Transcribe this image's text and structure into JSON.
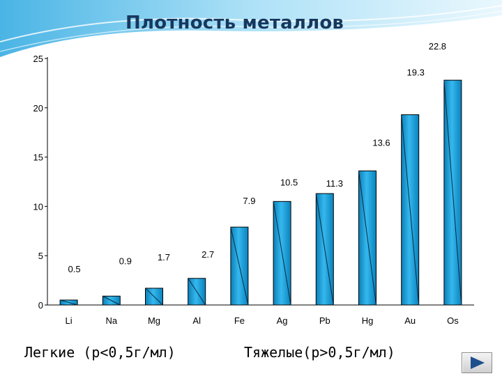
{
  "title": "Плотность металлов",
  "notes": {
    "light": "Легкие (р<0,5г/мл)",
    "heavy": "Тяжелые(р>0,5г/мл)"
  },
  "colors": {
    "bar": "#1ea0d8",
    "bar_light": "#7fd4f5",
    "title": "#17375e",
    "swoosh": "#4fb9e8"
  },
  "icons": {
    "next": "play-right-icon"
  },
  "chart_data": {
    "type": "bar",
    "categories": [
      "Li",
      "Na",
      "Mg",
      "Al",
      "Fe",
      "Ag",
      "Pb",
      "Hg",
      "Au",
      "Os"
    ],
    "values": [
      0.5,
      0.9,
      1.7,
      2.7,
      7.9,
      10.5,
      11.3,
      13.6,
      19.3,
      22.8
    ],
    "data_labels": [
      "0.5",
      "0.9",
      "1.7",
      "2.7",
      "7.9",
      "10.5",
      "11.3",
      "13.6",
      "19.3",
      "22.8"
    ],
    "title": "Плотность металлов",
    "xlabel": "",
    "ylabel": "",
    "ylim": [
      0,
      25
    ],
    "yticks": [
      "0",
      "5",
      "10",
      "15",
      "20",
      "25"
    ],
    "grid": false,
    "legend": "none"
  }
}
